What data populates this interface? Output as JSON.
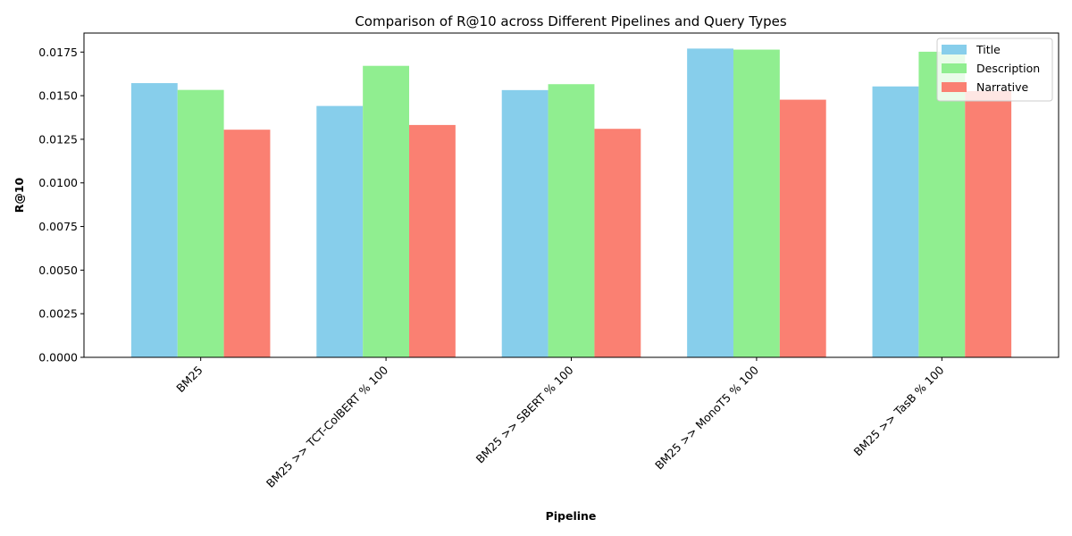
{
  "chart_data": {
    "type": "bar",
    "title": "Comparison of R@10 across Different Pipelines and Query Types",
    "xlabel": "Pipeline",
    "ylabel": "R@10",
    "categories": [
      "BM25",
      "BM25 >> TCT-ColBERT % 100",
      "BM25 >> SBERT % 100",
      "BM25 >> MonoT5 % 100",
      "BM25 >> TasB % 100"
    ],
    "series": [
      {
        "name": "Title",
        "color": "#87ceeb",
        "values": [
          0.01572,
          0.01441,
          0.01532,
          0.0177,
          0.01553
        ]
      },
      {
        "name": "Description",
        "color": "#90ee90",
        "values": [
          0.01533,
          0.01671,
          0.01566,
          0.01764,
          0.01752
        ]
      },
      {
        "name": "Narrative",
        "color": "#fa8072",
        "values": [
          0.01305,
          0.01332,
          0.0131,
          0.01477,
          0.01526
        ]
      }
    ],
    "ylim": [
      0,
      0.01859
    ],
    "yticks": [
      "0.0000",
      "0.0025",
      "0.0050",
      "0.0075",
      "0.0100",
      "0.0125",
      "0.0150",
      "0.0175"
    ],
    "legend_position": "top-right",
    "grid": false
  }
}
